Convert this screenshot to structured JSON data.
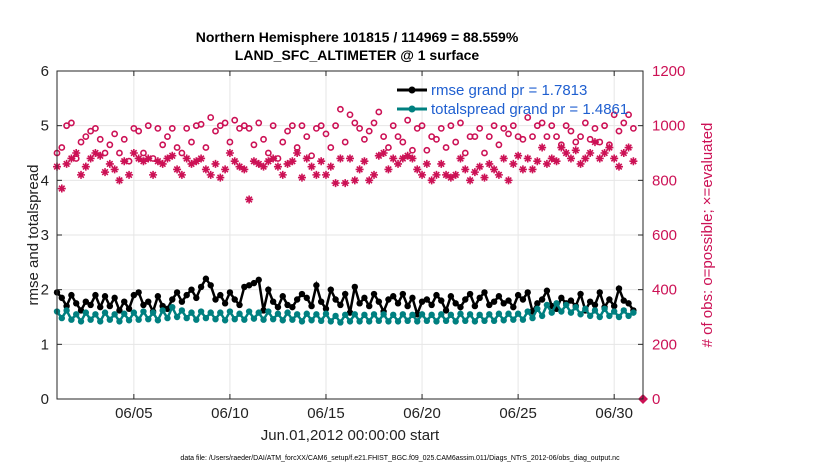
{
  "chart_data": {
    "type": "line",
    "title": "Northern Hemisphere 101815 / 114969 = 88.559%",
    "subtitle": "LAND_SFC_ALTIMETER @ 1 surface",
    "xlabel": "Jun.01,2012 00:00:00 start",
    "ylabel": "rmse and totalspread",
    "ylabel_right": "# of obs: o=possible; ×=evaluated",
    "footer": "data file: /Users/raeder/DAI/ATM_forcXX/CAM6_setup/f.e21.FHIST_BGC.f09_025.CAM6assim.011/Diags_NTrS_2012-06/obs_diag_output.nc",
    "xlim": [
      1,
      31.5
    ],
    "ylim": [
      0,
      6
    ],
    "ylim_right": [
      0,
      1200
    ],
    "x_ticks": [
      5,
      10,
      15,
      20,
      25,
      30
    ],
    "x_tick_labels": [
      "06/05",
      "06/10",
      "06/15",
      "06/20",
      "06/25",
      "06/30"
    ],
    "y_ticks": [
      0,
      1,
      2,
      3,
      4,
      5,
      6
    ],
    "y_tick_labels": [
      "0",
      "1",
      "2",
      "3",
      "4",
      "5",
      "6"
    ],
    "y_right_ticks": [
      0,
      200,
      400,
      600,
      800,
      1000,
      1200
    ],
    "y_right_tick_labels": [
      "0",
      "200",
      "400",
      "600",
      "800",
      "1000",
      "1200"
    ],
    "grid": true,
    "legend_position": "top-right",
    "colors": {
      "rmse": "#000000",
      "spread": "#008080",
      "obs": "#cc1155",
      "grid": "#e6e6e6",
      "axis": "#262626"
    },
    "series": [
      {
        "name": "rmse grand pr = 1.7813",
        "axis": "left",
        "marker": "filled-circle",
        "x": [
          1.0,
          1.25,
          1.5,
          1.75,
          2.0,
          2.25,
          2.5,
          2.75,
          3.0,
          3.25,
          3.5,
          3.75,
          4.0,
          4.25,
          4.5,
          4.75,
          5.0,
          5.25,
          5.5,
          5.75,
          6.0,
          6.25,
          6.5,
          6.75,
          7.0,
          7.25,
          7.5,
          7.75,
          8.0,
          8.25,
          8.5,
          8.75,
          9.0,
          9.25,
          9.5,
          9.75,
          10.0,
          10.25,
          10.5,
          10.75,
          11.0,
          11.25,
          11.5,
          11.75,
          12.0,
          12.25,
          12.5,
          12.75,
          13.0,
          13.25,
          13.5,
          13.75,
          14.0,
          14.25,
          14.5,
          14.75,
          15.0,
          15.25,
          15.5,
          15.75,
          16.0,
          16.25,
          16.5,
          16.75,
          17.0,
          17.25,
          17.5,
          17.75,
          18.0,
          18.25,
          18.5,
          18.75,
          19.0,
          19.25,
          19.5,
          19.75,
          20.0,
          20.25,
          20.5,
          20.75,
          21.0,
          21.25,
          21.5,
          21.75,
          22.0,
          22.25,
          22.5,
          22.75,
          23.0,
          23.25,
          23.5,
          23.75,
          24.0,
          24.25,
          24.5,
          24.75,
          25.0,
          25.25,
          25.5,
          25.75,
          26.0,
          26.25,
          26.5,
          26.75,
          27.0,
          27.25,
          27.5,
          27.75,
          28.0,
          28.25,
          28.5,
          28.75,
          29.0,
          29.25,
          29.5,
          29.75,
          30.0,
          30.25,
          30.5,
          30.75,
          31.0
        ],
        "values": [
          1.95,
          1.85,
          1.7,
          1.9,
          1.75,
          1.62,
          1.78,
          1.72,
          1.9,
          1.68,
          1.88,
          1.7,
          1.85,
          1.62,
          1.78,
          1.65,
          1.9,
          1.95,
          1.72,
          1.78,
          1.6,
          1.88,
          1.7,
          1.65,
          1.82,
          1.95,
          1.78,
          1.9,
          2.0,
          1.85,
          2.05,
          2.2,
          2.08,
          1.82,
          1.9,
          1.75,
          1.95,
          1.82,
          1.72,
          2.05,
          2.08,
          2.12,
          2.18,
          1.62,
          2.0,
          1.78,
          1.68,
          1.88,
          1.72,
          1.68,
          1.82,
          1.92,
          1.85,
          1.7,
          2.08,
          1.78,
          1.65,
          2.0,
          1.82,
          1.72,
          1.92,
          1.58,
          2.05,
          1.75,
          1.85,
          1.7,
          1.92,
          1.78,
          1.6,
          1.82,
          1.88,
          1.75,
          1.92,
          1.7,
          1.85,
          1.55,
          1.78,
          1.82,
          1.72,
          1.9,
          1.8,
          1.62,
          1.88,
          1.75,
          1.68,
          1.82,
          1.92,
          1.7,
          1.85,
          1.95,
          1.72,
          1.78,
          1.88,
          1.75,
          1.8,
          1.68,
          1.9,
          1.82,
          1.95,
          1.6,
          1.75,
          1.82,
          1.98,
          1.7,
          1.65,
          1.85,
          1.75,
          1.8,
          1.7,
          1.92,
          1.62,
          1.78,
          1.72,
          1.95,
          1.68,
          1.82,
          1.7,
          2.02,
          1.8,
          1.75,
          1.62
        ]
      },
      {
        "name": "totalspread grand pr = 1.4861",
        "axis": "left",
        "marker": "filled-circle",
        "x": [
          1.0,
          1.25,
          1.5,
          1.75,
          2.0,
          2.25,
          2.5,
          2.75,
          3.0,
          3.25,
          3.5,
          3.75,
          4.0,
          4.25,
          4.5,
          4.75,
          5.0,
          5.25,
          5.5,
          5.75,
          6.0,
          6.25,
          6.5,
          6.75,
          7.0,
          7.25,
          7.5,
          7.75,
          8.0,
          8.25,
          8.5,
          8.75,
          9.0,
          9.25,
          9.5,
          9.75,
          10.0,
          10.25,
          10.5,
          10.75,
          11.0,
          11.25,
          11.5,
          11.75,
          12.0,
          12.25,
          12.5,
          12.75,
          13.0,
          13.25,
          13.5,
          13.75,
          14.0,
          14.25,
          14.5,
          14.75,
          15.0,
          15.25,
          15.5,
          15.75,
          16.0,
          16.25,
          16.5,
          16.75,
          17.0,
          17.25,
          17.5,
          17.75,
          18.0,
          18.25,
          18.5,
          18.75,
          19.0,
          19.25,
          19.5,
          19.75,
          20.0,
          20.25,
          20.5,
          20.75,
          21.0,
          21.25,
          21.5,
          21.75,
          22.0,
          22.25,
          22.5,
          22.75,
          23.0,
          23.25,
          23.5,
          23.75,
          24.0,
          24.25,
          24.5,
          24.75,
          25.0,
          25.25,
          25.5,
          25.75,
          26.0,
          26.25,
          26.5,
          26.75,
          27.0,
          27.25,
          27.5,
          27.75,
          28.0,
          28.25,
          28.5,
          28.75,
          29.0,
          29.25,
          29.5,
          29.75,
          30.0,
          30.25,
          30.5,
          30.75,
          31.0
        ],
        "values": [
          1.6,
          1.48,
          1.62,
          1.45,
          1.55,
          1.42,
          1.58,
          1.45,
          1.55,
          1.42,
          1.58,
          1.45,
          1.55,
          1.42,
          1.56,
          1.44,
          1.58,
          1.45,
          1.6,
          1.46,
          1.58,
          1.44,
          1.62,
          1.48,
          1.68,
          1.5,
          1.62,
          1.48,
          1.58,
          1.45,
          1.6,
          1.48,
          1.58,
          1.46,
          1.58,
          1.44,
          1.6,
          1.46,
          1.56,
          1.45,
          1.6,
          1.47,
          1.58,
          1.45,
          1.6,
          1.46,
          1.56,
          1.44,
          1.58,
          1.45,
          1.55,
          1.42,
          1.56,
          1.44,
          1.55,
          1.43,
          1.56,
          1.42,
          1.52,
          1.4,
          1.54,
          1.42,
          1.55,
          1.42,
          1.54,
          1.42,
          1.55,
          1.43,
          1.55,
          1.42,
          1.54,
          1.42,
          1.55,
          1.43,
          1.54,
          1.42,
          1.55,
          1.43,
          1.54,
          1.42,
          1.55,
          1.43,
          1.54,
          1.42,
          1.56,
          1.43,
          1.55,
          1.42,
          1.54,
          1.43,
          1.55,
          1.43,
          1.56,
          1.44,
          1.56,
          1.45,
          1.56,
          1.45,
          1.6,
          1.48,
          1.65,
          1.52,
          1.72,
          1.58,
          1.75,
          1.6,
          1.72,
          1.58,
          1.68,
          1.55,
          1.65,
          1.52,
          1.62,
          1.5,
          1.65,
          1.52,
          1.6,
          1.5,
          1.62,
          1.52,
          1.58
        ]
      },
      {
        "name": "possible obs",
        "axis": "right",
        "marker": "open-circle",
        "x": [
          1.0,
          1.25,
          1.5,
          1.75,
          2.0,
          2.25,
          2.5,
          2.75,
          3.0,
          3.25,
          3.5,
          3.75,
          4.0,
          4.25,
          4.5,
          4.75,
          5.0,
          5.25,
          5.5,
          5.75,
          6.0,
          6.25,
          6.5,
          6.75,
          7.0,
          7.25,
          7.5,
          7.75,
          8.0,
          8.25,
          8.5,
          8.75,
          9.0,
          9.25,
          9.5,
          9.75,
          10.0,
          10.25,
          10.5,
          10.75,
          11.0,
          11.25,
          11.5,
          11.75,
          12.0,
          12.25,
          12.5,
          12.75,
          13.0,
          13.25,
          13.5,
          13.75,
          14.0,
          14.25,
          14.5,
          14.75,
          15.0,
          15.25,
          15.5,
          15.75,
          16.0,
          16.25,
          16.5,
          16.75,
          17.0,
          17.25,
          17.5,
          17.75,
          18.0,
          18.25,
          18.5,
          18.75,
          19.0,
          19.25,
          19.5,
          19.75,
          20.0,
          20.25,
          20.5,
          20.75,
          21.0,
          21.25,
          21.5,
          21.75,
          22.0,
          22.25,
          22.5,
          22.75,
          23.0,
          23.25,
          23.5,
          23.75,
          24.0,
          24.25,
          24.5,
          24.75,
          25.0,
          25.25,
          25.5,
          25.75,
          26.0,
          26.25,
          26.5,
          26.75,
          27.0,
          27.25,
          27.5,
          27.75,
          28.0,
          28.25,
          28.5,
          28.75,
          29.0,
          29.25,
          29.5,
          29.75,
          30.0,
          30.25,
          30.5,
          30.75,
          31.0,
          31.5
        ],
        "values": [
          900,
          920,
          1000,
          1010,
          880,
          940,
          960,
          980,
          990,
          950,
          900,
          930,
          970,
          900,
          950,
          870,
          990,
          980,
          900,
          1000,
          880,
          990,
          930,
          960,
          990,
          920,
          900,
          990,
          940,
          1000,
          1005,
          920,
          1030,
          980,
          1000,
          1010,
          940,
          1020,
          990,
          1000,
          990,
          930,
          1010,
          950,
          900,
          1000,
          880,
          940,
          980,
          1000,
          920,
          1000,
          960,
          890,
          990,
          1000,
          970,
          920,
          1000,
          1060,
          940,
          1040,
          1010,
          990,
          950,
          980,
          1010,
          1050,
          960,
          920,
          1000,
          960,
          940,
          1020,
          910,
          990,
          1000,
          910,
          960,
          950,
          990,
          920,
          1000,
          940,
          1010,
          900,
          960,
          960,
          990,
          900,
          960,
          1000,
          930,
          990,
          970,
          1000,
          960,
          950,
          1030,
          960,
          1000,
          1010,
          960,
          1000,
          960,
          930,
          1000,
          980,
          940,
          960,
          1010,
          950,
          990,
          940,
          1000,
          930,
          1040,
          980,
          1010,
          1040,
          990,
          0
        ]
      },
      {
        "name": "evaluated obs",
        "axis": "right",
        "marker": "asterisk",
        "x": [
          1.0,
          1.25,
          1.5,
          1.75,
          2.0,
          2.25,
          2.5,
          2.75,
          3.0,
          3.25,
          3.5,
          3.75,
          4.0,
          4.25,
          4.5,
          4.75,
          5.0,
          5.25,
          5.5,
          5.75,
          6.0,
          6.25,
          6.5,
          6.75,
          7.0,
          7.25,
          7.5,
          7.75,
          8.0,
          8.25,
          8.5,
          8.75,
          9.0,
          9.25,
          9.5,
          9.75,
          10.0,
          10.25,
          10.5,
          10.75,
          11.0,
          11.25,
          11.5,
          11.75,
          12.0,
          12.25,
          12.5,
          12.75,
          13.0,
          13.25,
          13.5,
          13.75,
          14.0,
          14.25,
          14.5,
          14.75,
          15.0,
          15.25,
          15.5,
          15.75,
          16.0,
          16.25,
          16.5,
          16.75,
          17.0,
          17.25,
          17.5,
          17.75,
          18.0,
          18.25,
          18.5,
          18.75,
          19.0,
          19.25,
          19.5,
          19.75,
          20.0,
          20.25,
          20.5,
          20.75,
          21.0,
          21.25,
          21.5,
          21.75,
          22.0,
          22.25,
          22.5,
          22.75,
          23.0,
          23.25,
          23.5,
          23.75,
          24.0,
          24.25,
          24.5,
          24.75,
          25.0,
          25.25,
          25.5,
          25.75,
          26.0,
          26.25,
          26.5,
          26.75,
          27.0,
          27.25,
          27.5,
          27.75,
          28.0,
          28.25,
          28.5,
          28.75,
          29.0,
          29.25,
          29.5,
          29.75,
          30.0,
          30.25,
          30.5,
          30.75,
          31.0
        ],
        "values": [
          850,
          770,
          860,
          880,
          900,
          820,
          850,
          880,
          900,
          890,
          830,
          860,
          840,
          800,
          870,
          820,
          900,
          880,
          870,
          880,
          820,
          870,
          860,
          880,
          890,
          840,
          820,
          880,
          860,
          870,
          880,
          840,
          820,
          860,
          810,
          840,
          900,
          870,
          850,
          840,
          730,
          870,
          860,
          850,
          870,
          880,
          850,
          820,
          860,
          870,
          900,
          810,
          880,
          850,
          820,
          870,
          820,
          850,
          790,
          880,
          790,
          880,
          800,
          840,
          870,
          800,
          820,
          890,
          900,
          840,
          880,
          860,
          880,
          890,
          880,
          840,
          820,
          860,
          800,
          820,
          860,
          820,
          810,
          820,
          880,
          840,
          800,
          830,
          850,
          810,
          860,
          840,
          820,
          880,
          800,
          860,
          890,
          840,
          880,
          840,
          870,
          920,
          860,
          880,
          870,
          920,
          900,
          880,
          910,
          860,
          880,
          900,
          940,
          880,
          900,
          920,
          880,
          850,
          900,
          920,
          870
        ]
      }
    ]
  }
}
